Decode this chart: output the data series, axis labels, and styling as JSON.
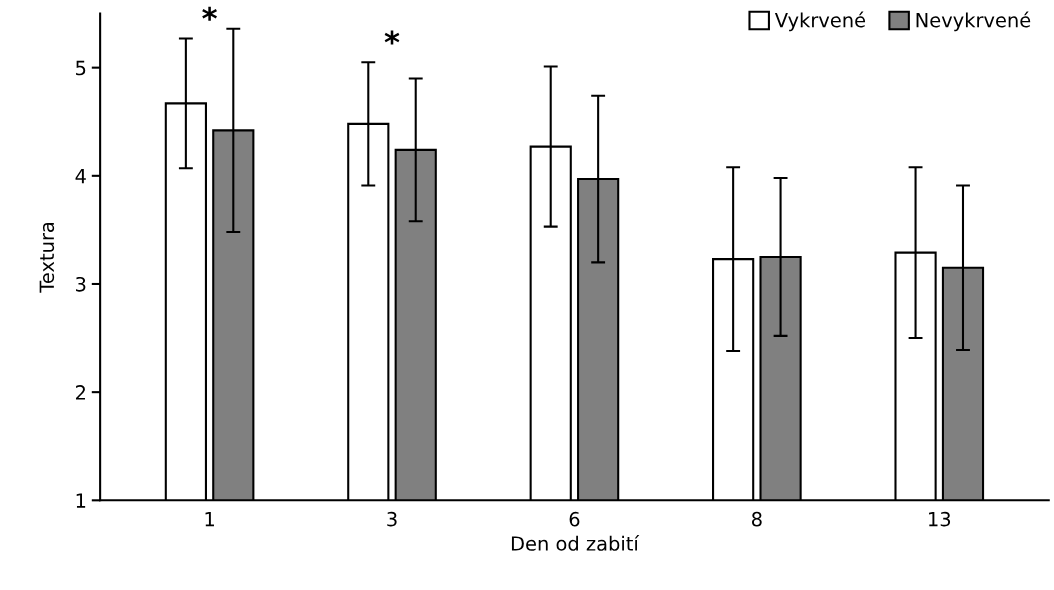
{
  "chart_data": {
    "type": "bar",
    "xlabel": "Den od zabití",
    "ylabel": "Textura",
    "categories": [
      "1",
      "3",
      "6",
      "8",
      "13"
    ],
    "series": [
      {
        "name": "Vykrvené",
        "color": "#ffffff",
        "values": [
          4.67,
          4.48,
          4.27,
          3.23,
          3.29
        ],
        "errors": [
          0.6,
          0.57,
          0.74,
          0.85,
          0.79
        ]
      },
      {
        "name": "Nevykrvené",
        "color": "#808080",
        "values": [
          4.42,
          4.24,
          3.97,
          3.25,
          3.15
        ],
        "errors": [
          0.94,
          0.66,
          0.77,
          0.73,
          0.76
        ]
      }
    ],
    "ylim": [
      1,
      5.5
    ],
    "yticks": [
      1,
      2,
      3,
      4,
      5
    ],
    "grid": false,
    "legend": "top right",
    "annotations": [
      "*",
      "*"
    ]
  }
}
